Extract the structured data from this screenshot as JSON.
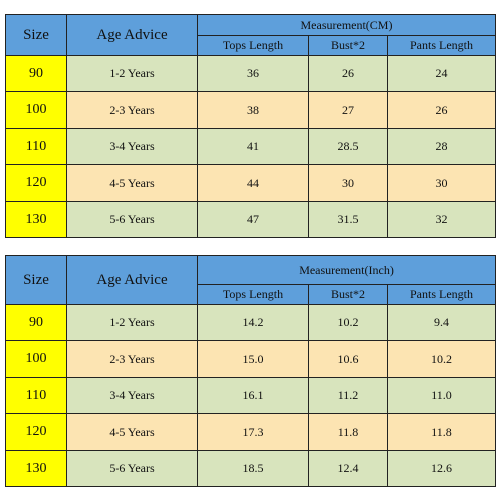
{
  "tables": [
    {
      "header": {
        "size": "Size",
        "age": "Age Advice",
        "measurement": "Measurement(CM)",
        "columns": [
          "Tops Length",
          "Bust*2",
          "Pants Length"
        ]
      },
      "rows": [
        [
          "90",
          "1-2 Years",
          "36",
          "26",
          "24"
        ],
        [
          "100",
          "2-3 Years",
          "38",
          "27",
          "26"
        ],
        [
          "110",
          "3-4 Years",
          "41",
          "28.5",
          "28"
        ],
        [
          "120",
          "4-5 Years",
          "44",
          "30",
          "30"
        ],
        [
          "130",
          "5-6 Years",
          "47",
          "31.5",
          "32"
        ]
      ]
    },
    {
      "header": {
        "size": "Size",
        "age": "Age Advice",
        "measurement": "Measurement(Inch)",
        "columns": [
          "Tops Length",
          "Bust*2",
          "Pants Length"
        ]
      },
      "rows": [
        [
          "90",
          "1-2 Years",
          "14.2",
          "10.2",
          "9.4"
        ],
        [
          "100",
          "2-3 Years",
          "15.0",
          "10.6",
          "10.2"
        ],
        [
          "110",
          "3-4 Years",
          "16.1",
          "11.2",
          "11.0"
        ],
        [
          "120",
          "4-5 Years",
          "17.3",
          "11.8",
          "11.8"
        ],
        [
          "130",
          "5-6 Years",
          "18.5",
          "12.4",
          "12.6"
        ]
      ]
    }
  ]
}
